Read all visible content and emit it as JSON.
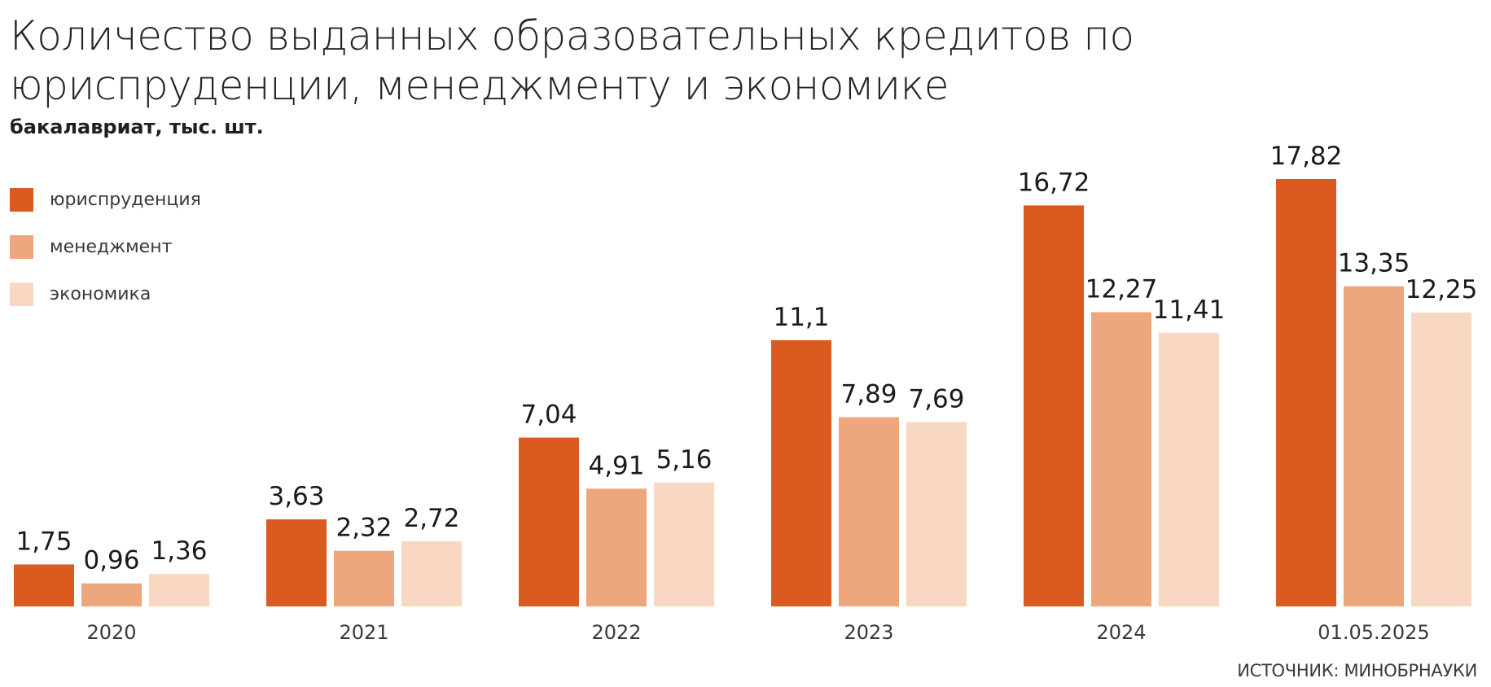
{
  "header": {
    "title": "Количество выданных образовательных кредитов по юриспруденции, менеджменту и экономике",
    "subtitle": "бакалавриат, тыс. шт."
  },
  "legend": [
    {
      "label": "юриспруденция",
      "color": "#db5a1f"
    },
    {
      "label": "менеджмент",
      "color": "#eea67d"
    },
    {
      "label": "экономика",
      "color": "#f8d8c3"
    }
  ],
  "source": "ИСТОЧНИК: МИНОБРНАУКИ",
  "chart_data": {
    "type": "bar",
    "title": "Количество выданных образовательных кредитов по юриспруденции, менеджменту и экономике",
    "subtitle": "бакалавриат, тыс. шт.",
    "categories": [
      "2020",
      "2021",
      "2022",
      "2023",
      "2024",
      "01.05.2025"
    ],
    "series": [
      {
        "name": "юриспруденция",
        "color": "#db5a1f",
        "values": [
          1.75,
          3.63,
          7.04,
          11.1,
          16.72,
          17.82
        ],
        "labels": [
          "1,75",
          "3,63",
          "7,04",
          "11,1",
          "16,72",
          "17,82"
        ]
      },
      {
        "name": "менеджмент",
        "color": "#eea67d",
        "values": [
          0.96,
          2.32,
          4.91,
          7.89,
          12.27,
          13.35
        ],
        "labels": [
          "0,96",
          "2,32",
          "4,91",
          "7,89",
          "12,27",
          "13,35"
        ]
      },
      {
        "name": "экономика",
        "color": "#f8d8c3",
        "values": [
          1.36,
          2.72,
          5.16,
          7.69,
          11.41,
          12.25
        ],
        "labels": [
          "1,36",
          "2,72",
          "5,16",
          "7,69",
          "11,41",
          "12,25"
        ]
      }
    ],
    "ylim": [
      0,
      17.82
    ],
    "grid": false,
    "legend_position": "top-left",
    "data_labels": true
  }
}
